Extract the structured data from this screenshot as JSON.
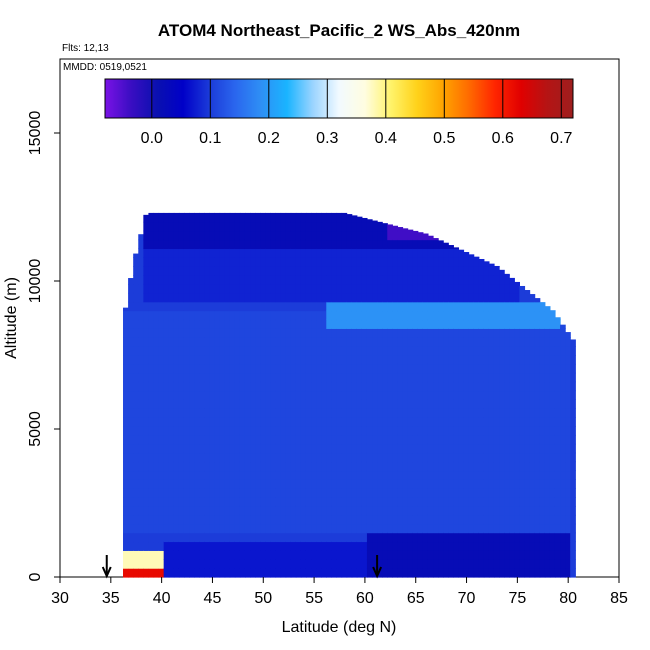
{
  "chart_data": {
    "type": "heatmap",
    "title": "ATOM4 Northeast_Pacific_2 WS_Abs_420nm",
    "flights": "Flts: 12,13",
    "dates": "MMDD: 0519,0521",
    "xlabel": "Latitude (deg N)",
    "ylabel": "Altitude (m)",
    "xlim": [
      30,
      85
    ],
    "ylim": [
      0,
      17500
    ],
    "x_ticks": [
      "30",
      "35",
      "40",
      "45",
      "50",
      "55",
      "60",
      "65",
      "70",
      "75",
      "80",
      "85"
    ],
    "y_ticks": [
      "0",
      "5000",
      "10000",
      "15000"
    ],
    "colorbar": {
      "range": [
        -0.08,
        0.72
      ],
      "ticks": [
        "0.0",
        "0.1",
        "0.2",
        "0.3",
        "0.4",
        "0.5",
        "0.6",
        "0.7"
      ],
      "colors": [
        "#7a12e6",
        "#3a0ec2",
        "#0a10b0",
        "#0000c8",
        "#1b3ad8",
        "#2a66ee",
        "#2e8ff5",
        "#1ab4ff",
        "#9bd4ff",
        "#f2faff",
        "#fffde0",
        "#fff36a",
        "#ffd21a",
        "#ffa400",
        "#ff6a00",
        "#ff2500",
        "#e00000",
        "#b51414",
        "#9e1e1e"
      ]
    },
    "arrows_at_latitude": [
      34.6,
      61.2
    ],
    "envelope": [
      {
        "lat": 36.2,
        "top": 8600
      },
      {
        "lat": 37.2,
        "top": 10600
      },
      {
        "lat": 38.5,
        "top": 12300
      },
      {
        "lat": 58.0,
        "top": 12300
      },
      {
        "lat": 66.0,
        "top": 11600
      },
      {
        "lat": 73.0,
        "top": 10500
      },
      {
        "lat": 78.5,
        "top": 9000
      },
      {
        "lat": 80.5,
        "top": 8000
      },
      {
        "lat": 80.0,
        "top": 0
      },
      {
        "lat": 36.2,
        "top": 0
      }
    ],
    "value_field": [
      {
        "lat": [
          36,
          46
        ],
        "alt": [
          0,
          400
        ],
        "value": 0.62
      },
      {
        "lat": [
          36,
          40
        ],
        "alt": [
          400,
          900
        ],
        "value": 0.38
      },
      {
        "lat": [
          40,
          60
        ],
        "alt": [
          0,
          1200
        ],
        "value": 0.07
      },
      {
        "lat": [
          60,
          80
        ],
        "alt": [
          0,
          1500
        ],
        "value": 0.02
      },
      {
        "lat": [
          58,
          72
        ],
        "alt": [
          1500,
          5500
        ],
        "value": 0.04
      },
      {
        "lat": [
          36,
          80
        ],
        "alt": [
          1500,
          9000
        ],
        "value": 0.11
      },
      {
        "lat": [
          56,
          79
        ],
        "alt": [
          8300,
          9300
        ],
        "value": 0.19
      },
      {
        "lat": [
          38,
          75
        ],
        "alt": [
          9300,
          11000
        ],
        "value": 0.08
      },
      {
        "lat": [
          38,
          73
        ],
        "alt": [
          11000,
          12300
        ],
        "value": 0.02
      },
      {
        "lat": [
          62,
          70
        ],
        "alt": [
          11300,
          12300
        ],
        "value": -0.04
      }
    ]
  }
}
